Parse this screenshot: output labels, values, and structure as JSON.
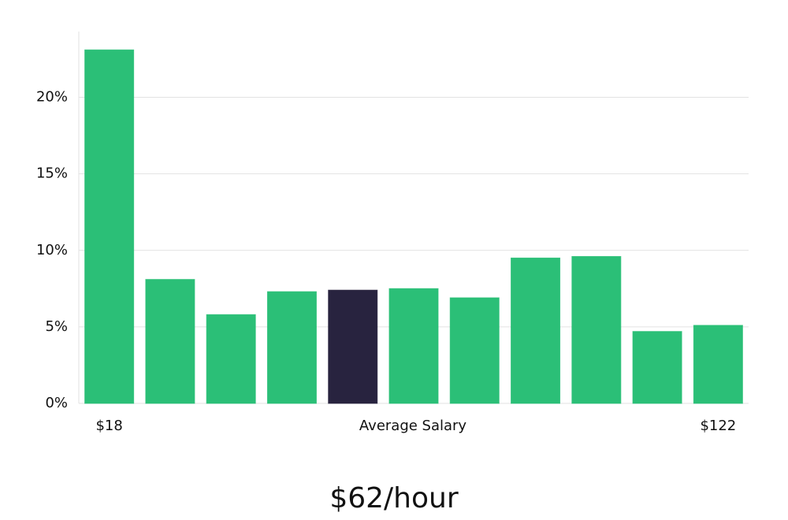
{
  "chart_data": {
    "type": "bar",
    "x_label": "Average Salary",
    "annotation": "$62/hour",
    "categories": [
      "$18",
      null,
      null,
      null,
      null,
      null,
      null,
      null,
      null,
      null,
      "$122"
    ],
    "values": [
      23.1,
      8.1,
      5.8,
      7.3,
      7.4,
      7.5,
      6.9,
      9.5,
      9.6,
      4.7,
      5.1
    ],
    "colors": [
      "#2bbf77",
      "#2bbf77",
      "#2bbf77",
      "#2bbf77",
      "#28233f",
      "#2bbf77",
      "#2bbf77",
      "#2bbf77",
      "#2bbf77",
      "#2bbf77",
      "#2bbf77"
    ],
    "ylim": [
      0,
      24.3
    ],
    "yticks": [
      {
        "value": 0,
        "label": "0%"
      },
      {
        "value": 5,
        "label": "5%"
      },
      {
        "value": 10,
        "label": "10%"
      },
      {
        "value": 15,
        "label": "15%"
      },
      {
        "value": 20,
        "label": "20%"
      }
    ],
    "grid": true
  }
}
